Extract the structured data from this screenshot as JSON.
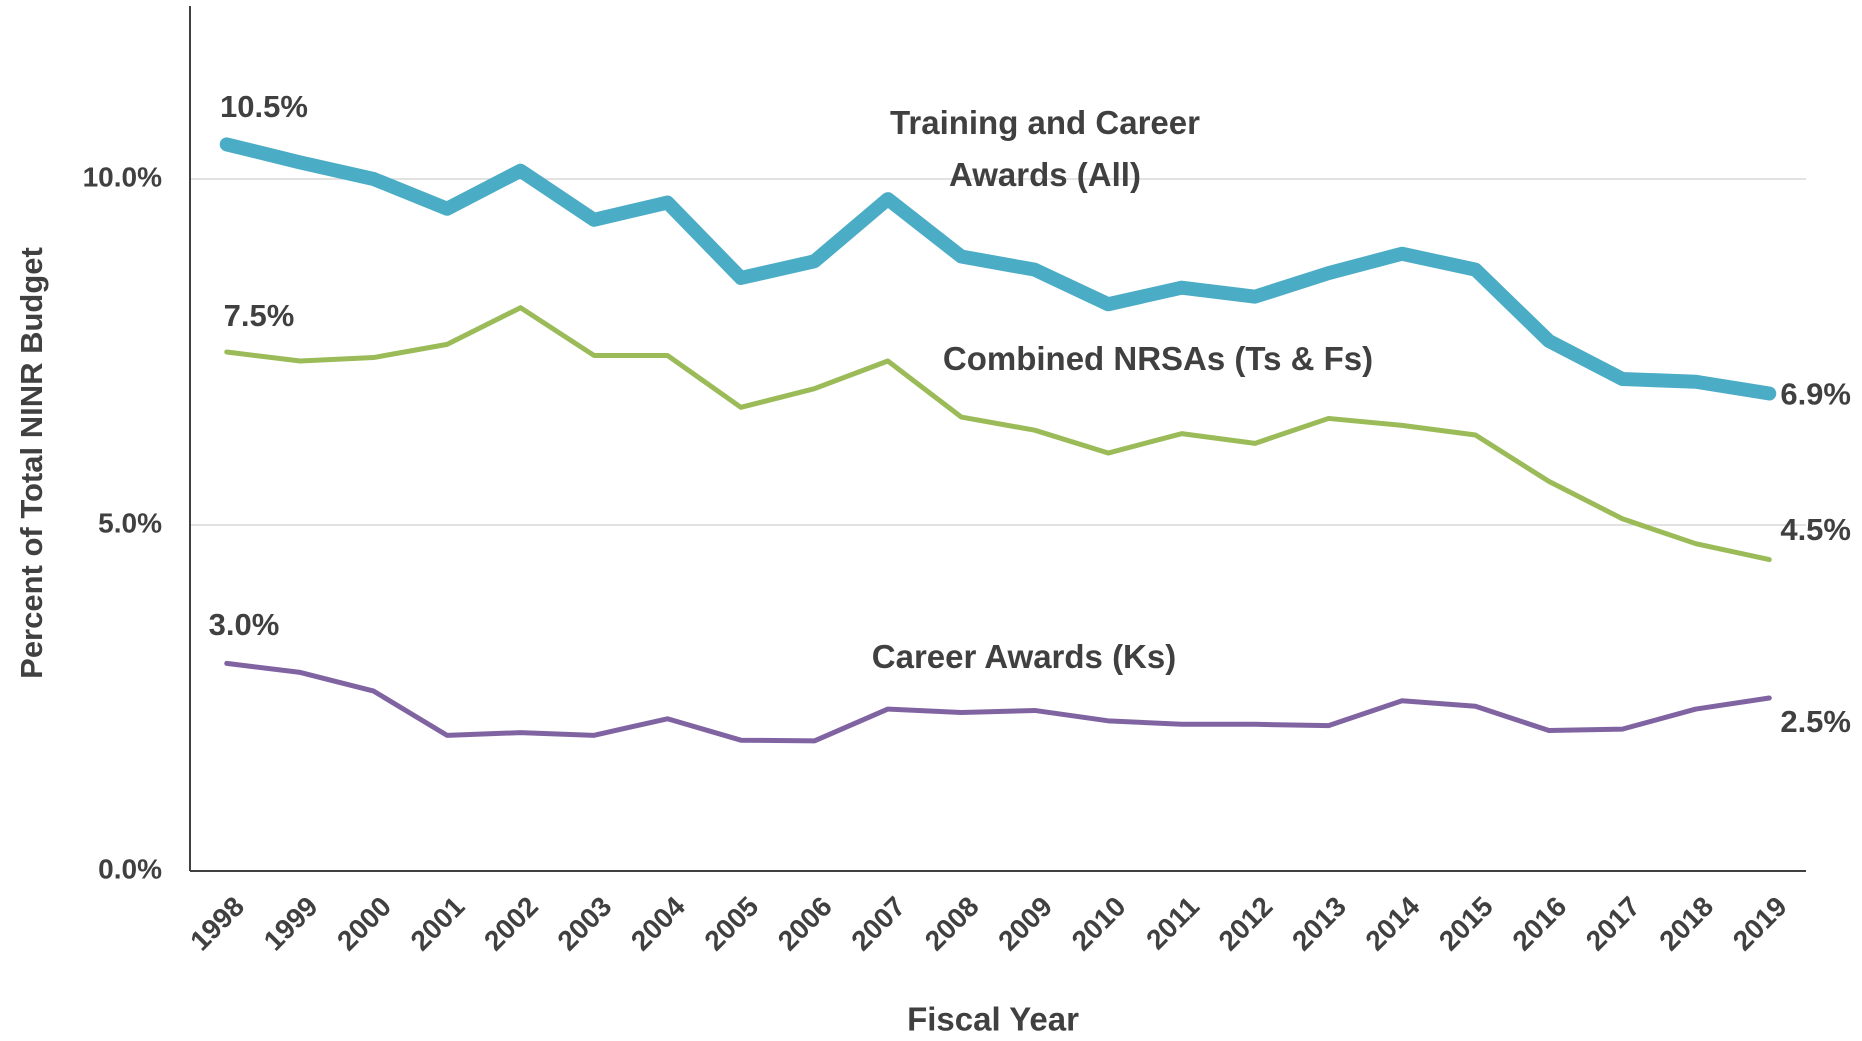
{
  "chart_data": {
    "type": "line",
    "xlabel": "Fiscal Year",
    "ylabel": "Percent of Total NINR Budget",
    "categories": [
      "1998",
      "1999",
      "2000",
      "2001",
      "2002",
      "2003",
      "2004",
      "2005",
      "2006",
      "2007",
      "2008",
      "2009",
      "2010",
      "2011",
      "2012",
      "2013",
      "2014",
      "2015",
      "2016",
      "2017",
      "2018",
      "2019"
    ],
    "ylim": [
      0,
      12.5
    ],
    "yticks": [
      {
        "value": 0,
        "label": "0.0%"
      },
      {
        "value": 5,
        "label": "5.0%"
      },
      {
        "value": 10,
        "label": "10.0%"
      }
    ],
    "grid": true,
    "series": [
      {
        "name": "Training and Career Awards (All)",
        "color": "#4bacc6",
        "values": [
          10.5,
          10.24,
          10.0,
          9.57,
          10.12,
          9.41,
          9.66,
          8.57,
          8.81,
          9.71,
          8.88,
          8.69,
          8.19,
          8.43,
          8.3,
          8.64,
          8.92,
          8.69,
          7.66,
          7.11,
          7.07,
          6.9
        ],
        "value_labels": [
          "10.5%",
          null,
          null,
          null,
          null,
          null,
          null,
          null,
          null,
          null,
          null,
          null,
          null,
          null,
          null,
          null,
          null,
          null,
          null,
          null,
          null,
          "6.9%"
        ]
      },
      {
        "name": "Combined NRSAs (Ts & Fs)",
        "color": "#9bbb59",
        "values": [
          7.5,
          7.37,
          7.42,
          7.61,
          8.14,
          7.45,
          7.45,
          6.7,
          6.97,
          7.37,
          6.56,
          6.37,
          6.04,
          6.32,
          6.18,
          6.54,
          6.44,
          6.3,
          5.63,
          5.09,
          4.73,
          4.5
        ],
        "value_labels": [
          "7.5%",
          null,
          null,
          null,
          null,
          null,
          null,
          null,
          null,
          null,
          null,
          null,
          null,
          null,
          null,
          null,
          null,
          null,
          null,
          null,
          null,
          "4.5%"
        ]
      },
      {
        "name": "Career Awards (Ks)",
        "color": "#8064a2",
        "values": [
          3.0,
          2.87,
          2.6,
          1.96,
          2.0,
          1.96,
          2.2,
          1.89,
          1.88,
          2.34,
          2.29,
          2.32,
          2.17,
          2.12,
          2.12,
          2.1,
          2.46,
          2.38,
          2.03,
          2.05,
          2.34,
          2.5
        ],
        "value_labels": [
          "3.0%",
          null,
          null,
          null,
          null,
          null,
          null,
          null,
          null,
          null,
          null,
          null,
          null,
          null,
          null,
          null,
          null,
          null,
          null,
          null,
          null,
          "2.5%"
        ]
      }
    ]
  }
}
